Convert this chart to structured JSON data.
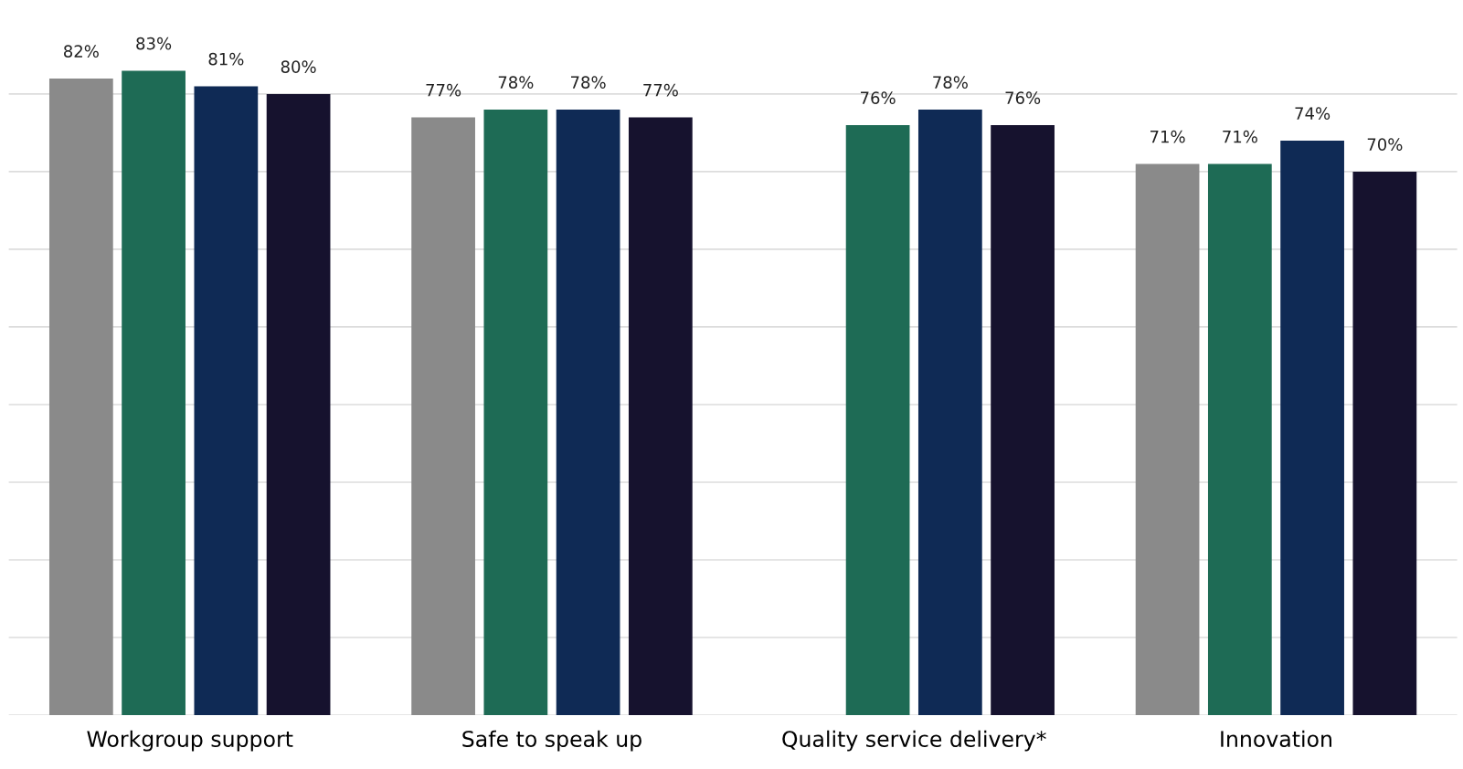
{
  "chart_data": {
    "type": "bar",
    "categories": [
      "Workgroup support",
      "Safe to speak up",
      "Quality service delivery*",
      "Innovation"
    ],
    "series": [
      {
        "color": "#8a8a8a",
        "values": [
          82,
          77,
          null,
          71
        ],
        "value_labels": [
          "82%",
          "77%",
          null,
          "71%"
        ]
      },
      {
        "color": "#1e6b55",
        "values": [
          83,
          78,
          76,
          71
        ],
        "value_labels": [
          "83%",
          "78%",
          "76%",
          "71%"
        ]
      },
      {
        "color": "#0f2a55",
        "values": [
          81,
          78,
          78,
          74
        ],
        "value_labels": [
          "81%",
          "78%",
          "78%",
          "74%"
        ]
      },
      {
        "color": "#16122e",
        "values": [
          80,
          77,
          76,
          70
        ],
        "value_labels": [
          "80%",
          "77%",
          "76%",
          "70%"
        ]
      }
    ],
    "grid": "y",
    "tick_labels": "x",
    "legend": false
  }
}
